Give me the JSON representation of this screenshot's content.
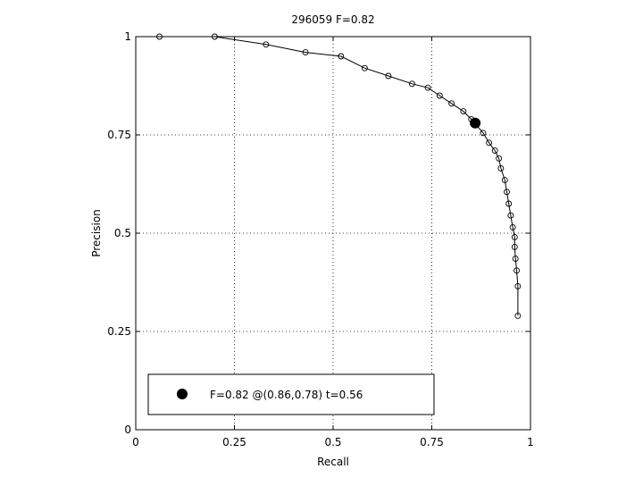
{
  "chart_data": {
    "type": "line",
    "title": "296059 F=0.82",
    "xlabel": "Recall",
    "ylabel": "Precision",
    "xlim": [
      0,
      1
    ],
    "ylim": [
      0,
      1
    ],
    "xticks": [
      0,
      0.25,
      0.5,
      0.75,
      1
    ],
    "yticks": [
      0,
      0.25,
      0.5,
      0.75,
      1
    ],
    "xtick_labels": [
      "0",
      "0.25",
      "0.5",
      "0.75",
      "1"
    ],
    "ytick_labels": [
      "0",
      "0.25",
      "0.5",
      "0.75",
      "1"
    ],
    "grid": true,
    "legend_position": "bottom-left",
    "series": [
      {
        "points": [
          [
            0.06,
            1.0
          ],
          [
            0.2,
            1.0
          ],
          [
            0.33,
            0.98
          ],
          [
            0.43,
            0.96
          ],
          [
            0.52,
            0.95
          ],
          [
            0.58,
            0.92
          ],
          [
            0.64,
            0.9
          ],
          [
            0.7,
            0.88
          ],
          [
            0.74,
            0.87
          ],
          [
            0.77,
            0.85
          ],
          [
            0.8,
            0.83
          ],
          [
            0.83,
            0.81
          ],
          [
            0.85,
            0.79
          ],
          [
            0.88,
            0.755
          ],
          [
            0.895,
            0.73
          ],
          [
            0.91,
            0.71
          ],
          [
            0.92,
            0.69
          ],
          [
            0.925,
            0.665
          ],
          [
            0.935,
            0.635
          ],
          [
            0.94,
            0.605
          ],
          [
            0.945,
            0.575
          ],
          [
            0.95,
            0.545
          ],
          [
            0.955,
            0.515
          ],
          [
            0.96,
            0.49
          ],
          [
            0.96,
            0.465
          ],
          [
            0.962,
            0.435
          ],
          [
            0.965,
            0.405
          ],
          [
            0.968,
            0.365
          ],
          [
            0.968,
            0.29
          ]
        ]
      }
    ],
    "best_point": {
      "x": 0.86,
      "y": 0.78,
      "label": "F=0.82 @(0.86,0.78) t=0.56"
    }
  }
}
